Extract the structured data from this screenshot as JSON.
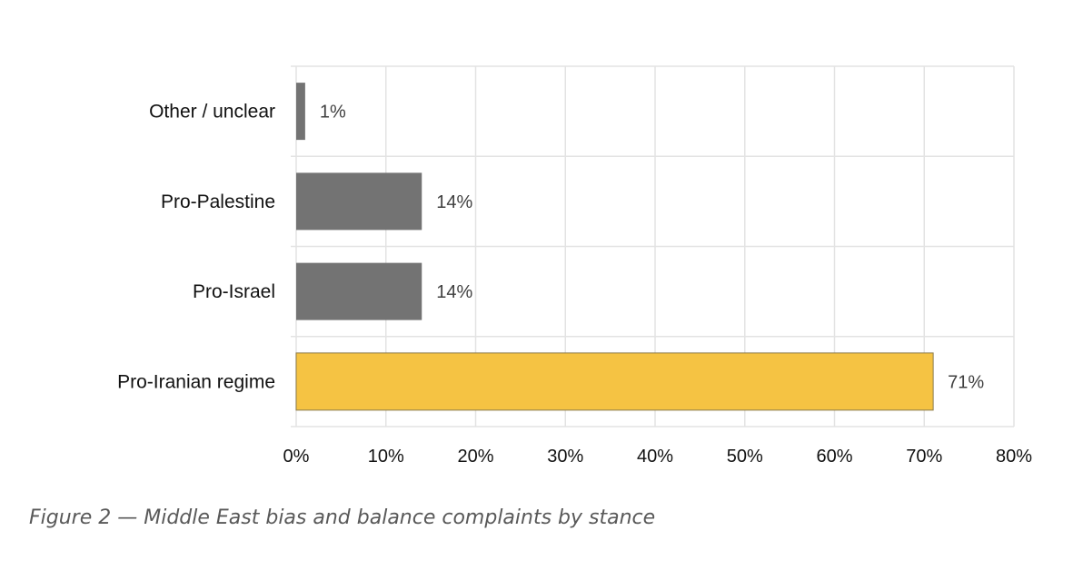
{
  "chart_data": {
    "type": "bar",
    "orientation": "horizontal",
    "categories": [
      "Other / unclear",
      "Pro-Palestine",
      "Pro-Israel",
      "Pro-Iranian regime"
    ],
    "values": [
      1,
      14,
      14,
      71
    ],
    "data_labels": [
      "1%",
      "14%",
      "14%",
      "71%"
    ],
    "bar_colors": [
      "#737373",
      "#737373",
      "#737373",
      "#F5C343"
    ],
    "xlim": [
      0,
      80
    ],
    "x_ticks": [
      0,
      10,
      20,
      30,
      40,
      50,
      60,
      70,
      80
    ],
    "x_tick_labels": [
      "0%",
      "10%",
      "20%",
      "30%",
      "40%",
      "50%",
      "60%",
      "70%",
      "80%"
    ],
    "grid": true,
    "legend": "none",
    "title": "",
    "xlabel": "",
    "ylabel": ""
  },
  "caption": "Figure 2 — Middle East bias and balance complaints by stance",
  "colors": {
    "gridline": "#E3E3E3",
    "axis": "#D9D9D9",
    "highlight": "#F5C343",
    "neutral": "#737373"
  }
}
